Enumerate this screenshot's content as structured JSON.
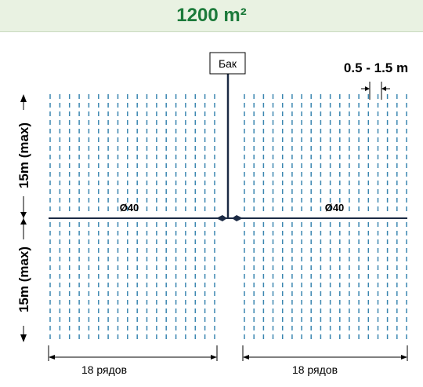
{
  "header": {
    "title": "1200 m²",
    "title_color": "#1c7a3a",
    "background": "#e9f2e2"
  },
  "diagram": {
    "tank_label": "Бак",
    "pipe_label_left": "Ø40",
    "pipe_label_right": "Ø40",
    "spacing_label": "0.5 - 1.5 m",
    "side_label_top": "15m (max)",
    "side_label_bottom": "15m (max)",
    "rows_label_left": "18 рядов",
    "rows_label_right": "18 рядов",
    "rows_per_side": 18,
    "drip_line_color": "#3a86b0",
    "pipe_color": "#1b2a44"
  }
}
